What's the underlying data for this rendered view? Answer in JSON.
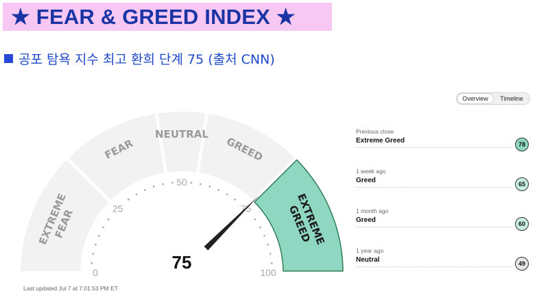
{
  "title": "★ FEAR & GREED INDEX ★",
  "subtitle": "공포 탐욕 지수 최고 환희 단계 75 (출처 CNN)",
  "toggle": {
    "overview": "Overview",
    "timeline": "Timeline",
    "active": "overview"
  },
  "gauge": {
    "value": 75,
    "value_label": "75",
    "segments": [
      {
        "label1": "EXTREME",
        "label2": "FEAR",
        "from": 0,
        "to": 25,
        "active": false
      },
      {
        "label1": "FEAR",
        "label2": "",
        "from": 25,
        "to": 45,
        "active": false
      },
      {
        "label1": "NEUTRAL",
        "label2": "",
        "from": 45,
        "to": 55,
        "active": false
      },
      {
        "label1": "GREED",
        "label2": "",
        "from": 55,
        "to": 75,
        "active": false
      },
      {
        "label1": "EXTREME",
        "label2": "GREED",
        "from": 75,
        "to": 100,
        "active": true
      }
    ],
    "ticks": [
      "0",
      "25",
      "50",
      "75",
      "100"
    ],
    "colors": {
      "segment": "#f2f2f2",
      "active": "#8fd7c0",
      "active_border": "#2e7d55",
      "needle": "#222222",
      "label": "#9a9a9a",
      "tick": "#b0b0b0"
    }
  },
  "history": [
    {
      "period": "Previous close",
      "rating": "Extreme Greed",
      "value": "78",
      "color": "#8fd7c0"
    },
    {
      "period": "1 week ago",
      "rating": "Greed",
      "value": "65",
      "color": "#c7eee2"
    },
    {
      "period": "1 month ago",
      "rating": "Greed",
      "value": "60",
      "color": "#c7eee2"
    },
    {
      "period": "1 year ago",
      "rating": "Neutral",
      "value": "49",
      "color": "#e6e6e6"
    }
  ],
  "last_updated": "Last updated Jul 7 at 7:01:53 PM ET"
}
